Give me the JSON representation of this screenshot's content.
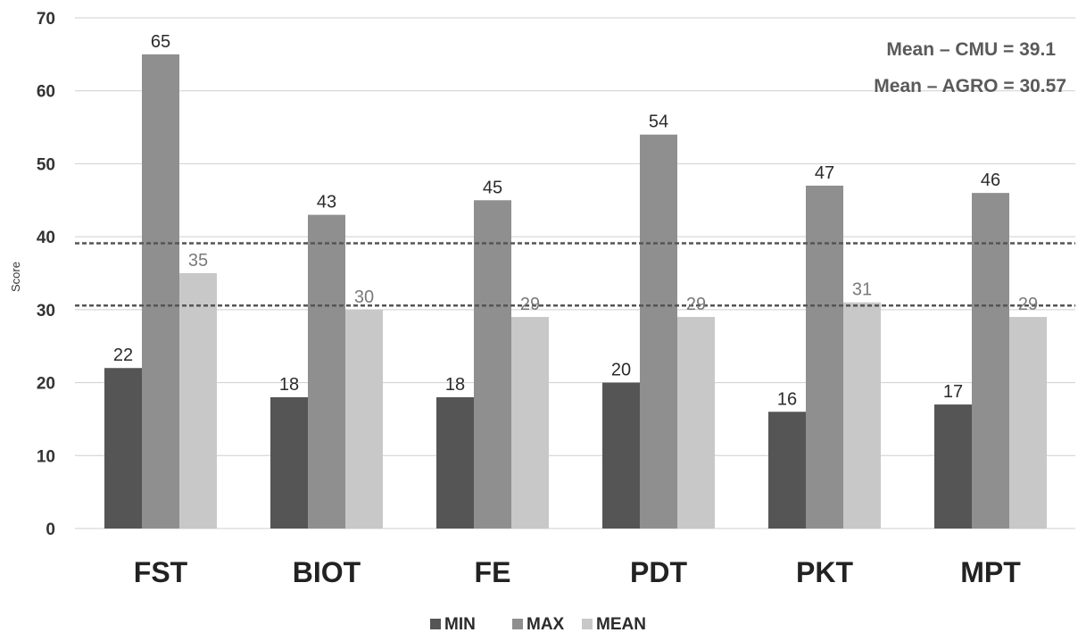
{
  "chart_data": {
    "type": "bar",
    "title": "",
    "xlabel": "",
    "ylabel": "Score",
    "ylim": [
      0,
      70
    ],
    "yticks": [
      "0",
      "10",
      "20",
      "30",
      "40",
      "50",
      "60",
      "70"
    ],
    "categories": [
      "FST",
      "BIOT",
      "FE",
      "PDT",
      "PKT",
      "MPT"
    ],
    "series": [
      {
        "name": "MIN",
        "values": [
          22,
          18,
          18,
          20,
          16,
          17
        ],
        "color": "#555555"
      },
      {
        "name": "MAX",
        "values": [
          65,
          43,
          45,
          54,
          47,
          46
        ],
        "color": "#8f8f8f"
      },
      {
        "name": "MEAN",
        "values": [
          35,
          30,
          29,
          29,
          31,
          29
        ],
        "color": "#c8c8c8"
      }
    ],
    "reference_lines": [
      {
        "label": "Mean – CMU = 39.1",
        "value": 39.1
      },
      {
        "label": "Mean – AGRO = 30.57",
        "value": 30.57
      }
    ],
    "grid": true,
    "legend_position": "bottom"
  }
}
